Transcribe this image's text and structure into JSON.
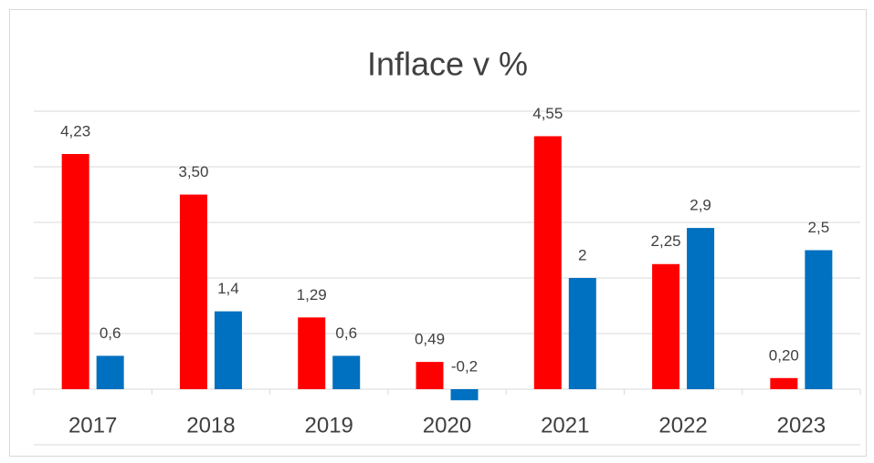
{
  "chart_data": {
    "type": "bar",
    "title": "Inflace v %",
    "categories": [
      "2017",
      "2018",
      "2019",
      "2020",
      "2021",
      "2022",
      "2023"
    ],
    "series": [
      {
        "color": "#ff0000",
        "values": [
          4.23,
          3.5,
          1.29,
          0.49,
          4.55,
          2.25,
          0.2
        ],
        "value_labels": [
          "4,23",
          "3,50",
          "1,29",
          "0,49",
          "4,55",
          "2,25",
          "0,20"
        ]
      },
      {
        "color": "#0070c0",
        "values": [
          0.6,
          1.4,
          0.6,
          -0.2,
          2,
          2.9,
          2.5
        ],
        "value_labels": [
          "0,6",
          "1,4",
          "0,6",
          "-0,2",
          "2",
          "2,9",
          "2,5"
        ]
      }
    ],
    "ylim": [
      -1,
      5
    ],
    "yticks": [
      -1,
      0,
      1,
      2,
      3,
      4,
      5
    ],
    "grid": true
  }
}
